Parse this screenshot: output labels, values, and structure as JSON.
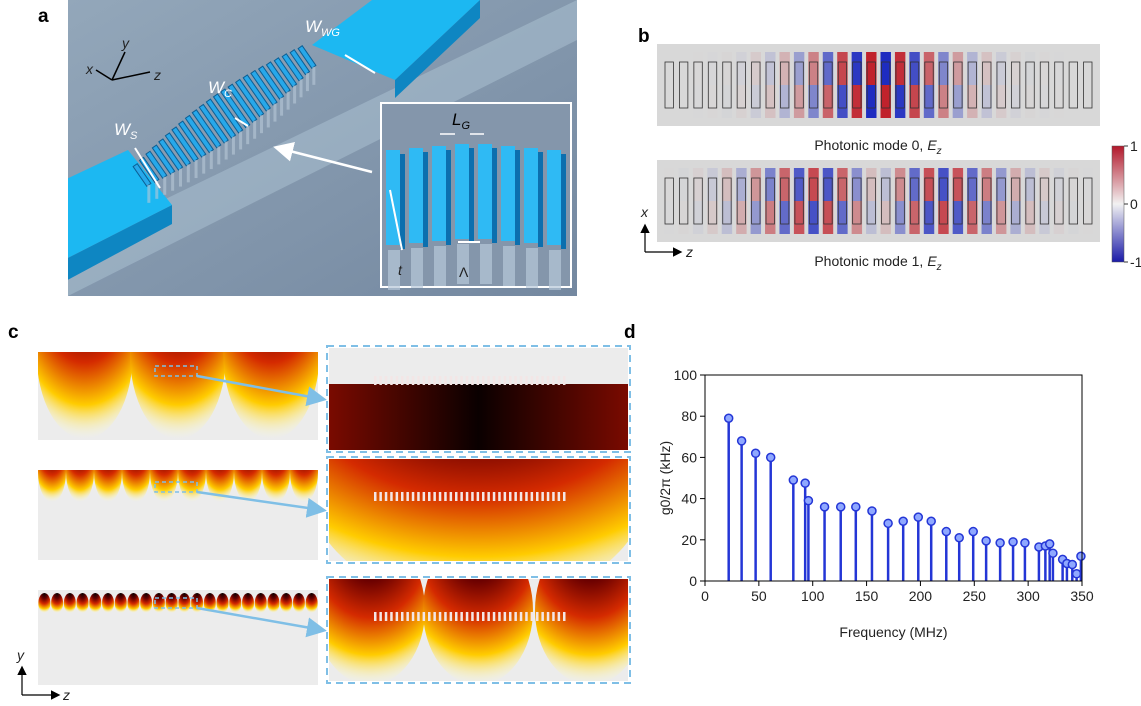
{
  "panels": {
    "a": {
      "label": "a",
      "axes": [
        "x",
        "y",
        "z"
      ],
      "dims": [
        {
          "main": "W",
          "sub": "WG"
        },
        {
          "main": "W",
          "sub": "C"
        },
        {
          "main": "W",
          "sub": "S"
        },
        {
          "main": "L",
          "sub": "G"
        }
      ],
      "thickness": "t",
      "period": "Λ"
    },
    "b": {
      "label": "b",
      "captions": [
        {
          "text": "Photonic mode 0,",
          "field": "E",
          "sub": "z"
        },
        {
          "text": "Photonic mode 1,",
          "field": "E",
          "sub": "z"
        }
      ],
      "colorbar_ticks": [
        1,
        0,
        -1
      ],
      "axes": [
        "x",
        "z"
      ]
    },
    "c": {
      "label": "c",
      "axes": [
        "y",
        "z"
      ]
    }
  },
  "chart_data": {
    "type": "stem",
    "panel_label": "d",
    "xlabel": "Frequency (MHz)",
    "ylabel": "g0/2π (kHz)",
    "x": [
      22,
      34,
      47,
      61,
      82,
      93,
      96,
      111,
      126,
      140,
      155,
      170,
      184,
      198,
      210,
      224,
      236,
      249,
      261,
      274,
      286,
      297,
      310,
      316,
      320,
      323,
      332,
      336,
      341,
      345,
      349
    ],
    "series": [
      {
        "color": "#2436d6",
        "values": [
          79,
          68,
          62,
          60,
          49,
          47.5,
          39,
          36,
          36,
          36,
          34,
          28,
          29,
          31,
          29,
          24,
          21,
          24,
          19.5,
          18.5,
          19,
          18.5,
          16.5,
          17,
          18,
          13.5,
          10.5,
          8.5,
          8,
          3.5,
          12
        ]
      }
    ],
    "xlim": [
      0,
      350
    ],
    "xticks": [
      0,
      50,
      100,
      150,
      200,
      250,
      300,
      350
    ],
    "ylim": [
      0,
      100
    ],
    "yticks": [
      0,
      20,
      40,
      60,
      80,
      100
    ]
  }
}
